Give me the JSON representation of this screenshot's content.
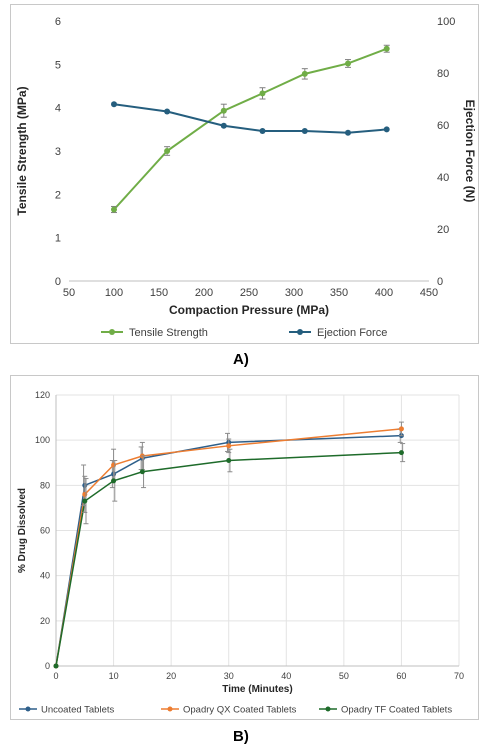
{
  "panel_labels": {
    "a": "A)",
    "b": "B)"
  },
  "chart_data": [
    {
      "type": "line",
      "title": "",
      "xlabel": "Compaction Pressure (MPa)",
      "ylabel": "Tensile Strength (MPa)",
      "y2label": "Ejection Force (N)",
      "xlim": [
        50,
        450
      ],
      "xticks": [
        50,
        100,
        150,
        200,
        250,
        300,
        350,
        400,
        450
      ],
      "ylim": [
        0,
        6
      ],
      "yticks": [
        0,
        1,
        2,
        3,
        4,
        5,
        6
      ],
      "y2lim": [
        0,
        100
      ],
      "y2ticks": [
        0,
        20,
        40,
        60,
        80,
        100
      ],
      "grid": false,
      "legend_position": "bottom",
      "series": [
        {
          "name": "Tensile Strength",
          "axis": "left",
          "color": "#70ad47",
          "x": [
            100,
            159,
            222,
            265,
            312,
            360,
            403
          ],
          "y": [
            1.65,
            3.0,
            3.93,
            4.33,
            4.78,
            5.02,
            5.36
          ],
          "err": [
            0.07,
            0.1,
            0.15,
            0.13,
            0.12,
            0.09,
            0.08
          ]
        },
        {
          "name": "Ejection Force",
          "axis": "right",
          "color": "#255e7e",
          "x": [
            100,
            159,
            222,
            265,
            312,
            360,
            403
          ],
          "y": [
            68,
            65.2,
            59.7,
            57.7,
            57.7,
            57,
            58.3
          ],
          "err": []
        }
      ]
    },
    {
      "type": "line",
      "title": "",
      "xlabel": "Time (Minutes)",
      "ylabel": "% Drug Dissolved",
      "xlim": [
        0,
        70
      ],
      "xticks": [
        0,
        10,
        20,
        30,
        40,
        50,
        60,
        70
      ],
      "ylim": [
        0,
        120
      ],
      "yticks": [
        0,
        20,
        40,
        60,
        80,
        100,
        120
      ],
      "grid": true,
      "legend_position": "bottom",
      "series": [
        {
          "name": "Uncoated Tablets",
          "color": "#2e5f8a",
          "x": [
            0,
            5,
            10,
            15,
            30,
            60
          ],
          "y": [
            0,
            80,
            85,
            92,
            99,
            102
          ],
          "err": [
            0,
            9,
            6,
            5,
            4,
            3
          ]
        },
        {
          "name": "Opadry QX Coated Tablets",
          "color": "#ed7d31",
          "x": [
            0,
            5,
            10,
            15,
            30,
            60
          ],
          "y": [
            0,
            76,
            89,
            93,
            97.5,
            105
          ],
          "err": [
            0,
            8,
            7,
            6,
            3,
            3
          ]
        },
        {
          "name": "Opadry TF Coated Tablets",
          "color": "#1e6b2a",
          "x": [
            0,
            5,
            10,
            15,
            30,
            60
          ],
          "y": [
            0,
            73,
            82,
            86,
            91,
            94.5
          ],
          "err": [
            0,
            10,
            9,
            7,
            5,
            4
          ]
        }
      ]
    }
  ]
}
